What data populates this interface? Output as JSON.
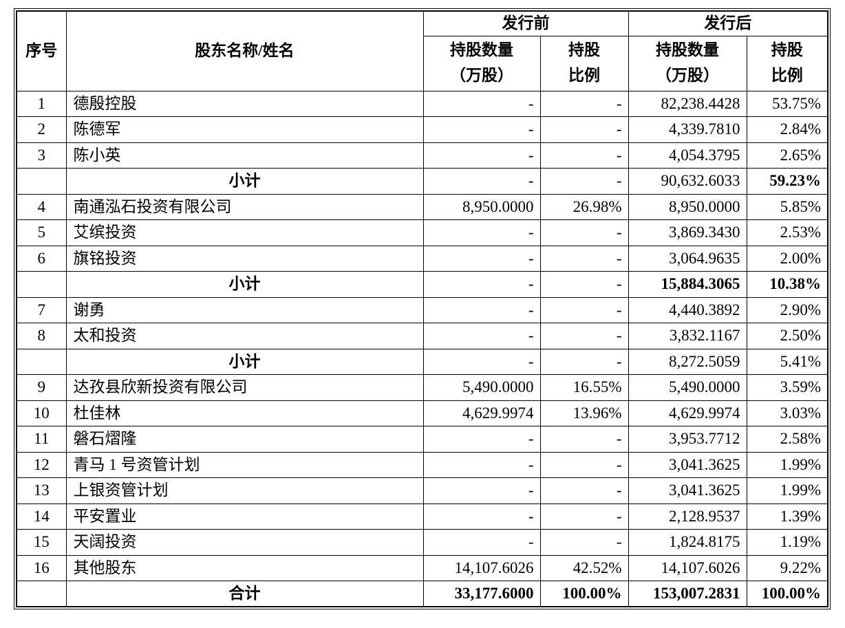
{
  "table": {
    "headers": {
      "index": "序号",
      "name": "股东名称/姓名",
      "pre_group": "发行前",
      "post_group": "发行后",
      "qty": "持股数量\n（万股）",
      "ratio": "持股\n比例"
    },
    "rows": [
      {
        "no": "1",
        "name": "德殷控股",
        "pre_qty": "-",
        "pre_ratio": "-",
        "post_qty": "82,238.4428",
        "post_ratio": "53.75%",
        "type": "data",
        "bold": []
      },
      {
        "no": "2",
        "name": "陈德军",
        "pre_qty": "-",
        "pre_ratio": "-",
        "post_qty": "4,339.7810",
        "post_ratio": "2.84%",
        "type": "data",
        "bold": []
      },
      {
        "no": "3",
        "name": "陈小英",
        "pre_qty": "-",
        "pre_ratio": "-",
        "post_qty": "4,054.3795",
        "post_ratio": "2.65%",
        "type": "data",
        "bold": []
      },
      {
        "no": "",
        "name": "小计",
        "pre_qty": "-",
        "pre_ratio": "-",
        "post_qty": "90,632.6033",
        "post_ratio": "59.23%",
        "type": "subtotal",
        "bold": [
          "post_ratio"
        ]
      },
      {
        "no": "4",
        "name": "南通泓石投资有限公司",
        "pre_qty": "8,950.0000",
        "pre_ratio": "26.98%",
        "post_qty": "8,950.0000",
        "post_ratio": "5.85%",
        "type": "data",
        "bold": []
      },
      {
        "no": "5",
        "name": "艾缤投资",
        "pre_qty": "-",
        "pre_ratio": "-",
        "post_qty": "3,869.3430",
        "post_ratio": "2.53%",
        "type": "data",
        "bold": []
      },
      {
        "no": "6",
        "name": "旗铭投资",
        "pre_qty": "-",
        "pre_ratio": "-",
        "post_qty": "3,064.9635",
        "post_ratio": "2.00%",
        "type": "data",
        "bold": []
      },
      {
        "no": "",
        "name": "小计",
        "pre_qty": "-",
        "pre_ratio": "-",
        "post_qty": "15,884.3065",
        "post_ratio": "10.38%",
        "type": "subtotal",
        "bold": [
          "post_qty",
          "post_ratio"
        ]
      },
      {
        "no": "7",
        "name": "谢勇",
        "pre_qty": "-",
        "pre_ratio": "-",
        "post_qty": "4,440.3892",
        "post_ratio": "2.90%",
        "type": "data",
        "bold": []
      },
      {
        "no": "8",
        "name": "太和投资",
        "pre_qty": "-",
        "pre_ratio": "-",
        "post_qty": "3,832.1167",
        "post_ratio": "2.50%",
        "type": "data",
        "bold": []
      },
      {
        "no": "",
        "name": "小计",
        "pre_qty": "-",
        "pre_ratio": "-",
        "post_qty": "8,272.5059",
        "post_ratio": "5.41%",
        "type": "subtotal",
        "bold": []
      },
      {
        "no": "9",
        "name": "达孜县欣新投资有限公司",
        "pre_qty": "5,490.0000",
        "pre_ratio": "16.55%",
        "post_qty": "5,490.0000",
        "post_ratio": "3.59%",
        "type": "data",
        "bold": []
      },
      {
        "no": "10",
        "name": "杜佳林",
        "pre_qty": "4,629.9974",
        "pre_ratio": "13.96%",
        "post_qty": "4,629.9974",
        "post_ratio": "3.03%",
        "type": "data",
        "bold": []
      },
      {
        "no": "11",
        "name": "磐石熠隆",
        "pre_qty": "-",
        "pre_ratio": "-",
        "post_qty": "3,953.7712",
        "post_ratio": "2.58%",
        "type": "data",
        "bold": []
      },
      {
        "no": "12",
        "name": "青马 1 号资管计划",
        "pre_qty": "-",
        "pre_ratio": "-",
        "post_qty": "3,041.3625",
        "post_ratio": "1.99%",
        "type": "data",
        "bold": []
      },
      {
        "no": "13",
        "name": "上银资管计划",
        "pre_qty": "-",
        "pre_ratio": "-",
        "post_qty": "3,041.3625",
        "post_ratio": "1.99%",
        "type": "data",
        "bold": []
      },
      {
        "no": "14",
        "name": "平安置业",
        "pre_qty": "-",
        "pre_ratio": "-",
        "post_qty": "2,128.9537",
        "post_ratio": "1.39%",
        "type": "data",
        "bold": []
      },
      {
        "no": "15",
        "name": "天阔投资",
        "pre_qty": "-",
        "pre_ratio": "-",
        "post_qty": "1,824.8175",
        "post_ratio": "1.19%",
        "type": "data",
        "bold": []
      },
      {
        "no": "16",
        "name": "其他股东",
        "pre_qty": "14,107.6026",
        "pre_ratio": "42.52%",
        "post_qty": "14,107.6026",
        "post_ratio": "9.22%",
        "type": "data",
        "bold": []
      },
      {
        "no": "",
        "name": "合计",
        "pre_qty": "33,177.6000",
        "pre_ratio": "100.00%",
        "post_qty": "153,007.2831",
        "post_ratio": "100.00%",
        "type": "total",
        "bold": [
          "pre_qty",
          "pre_ratio",
          "post_qty",
          "post_ratio"
        ]
      }
    ]
  }
}
